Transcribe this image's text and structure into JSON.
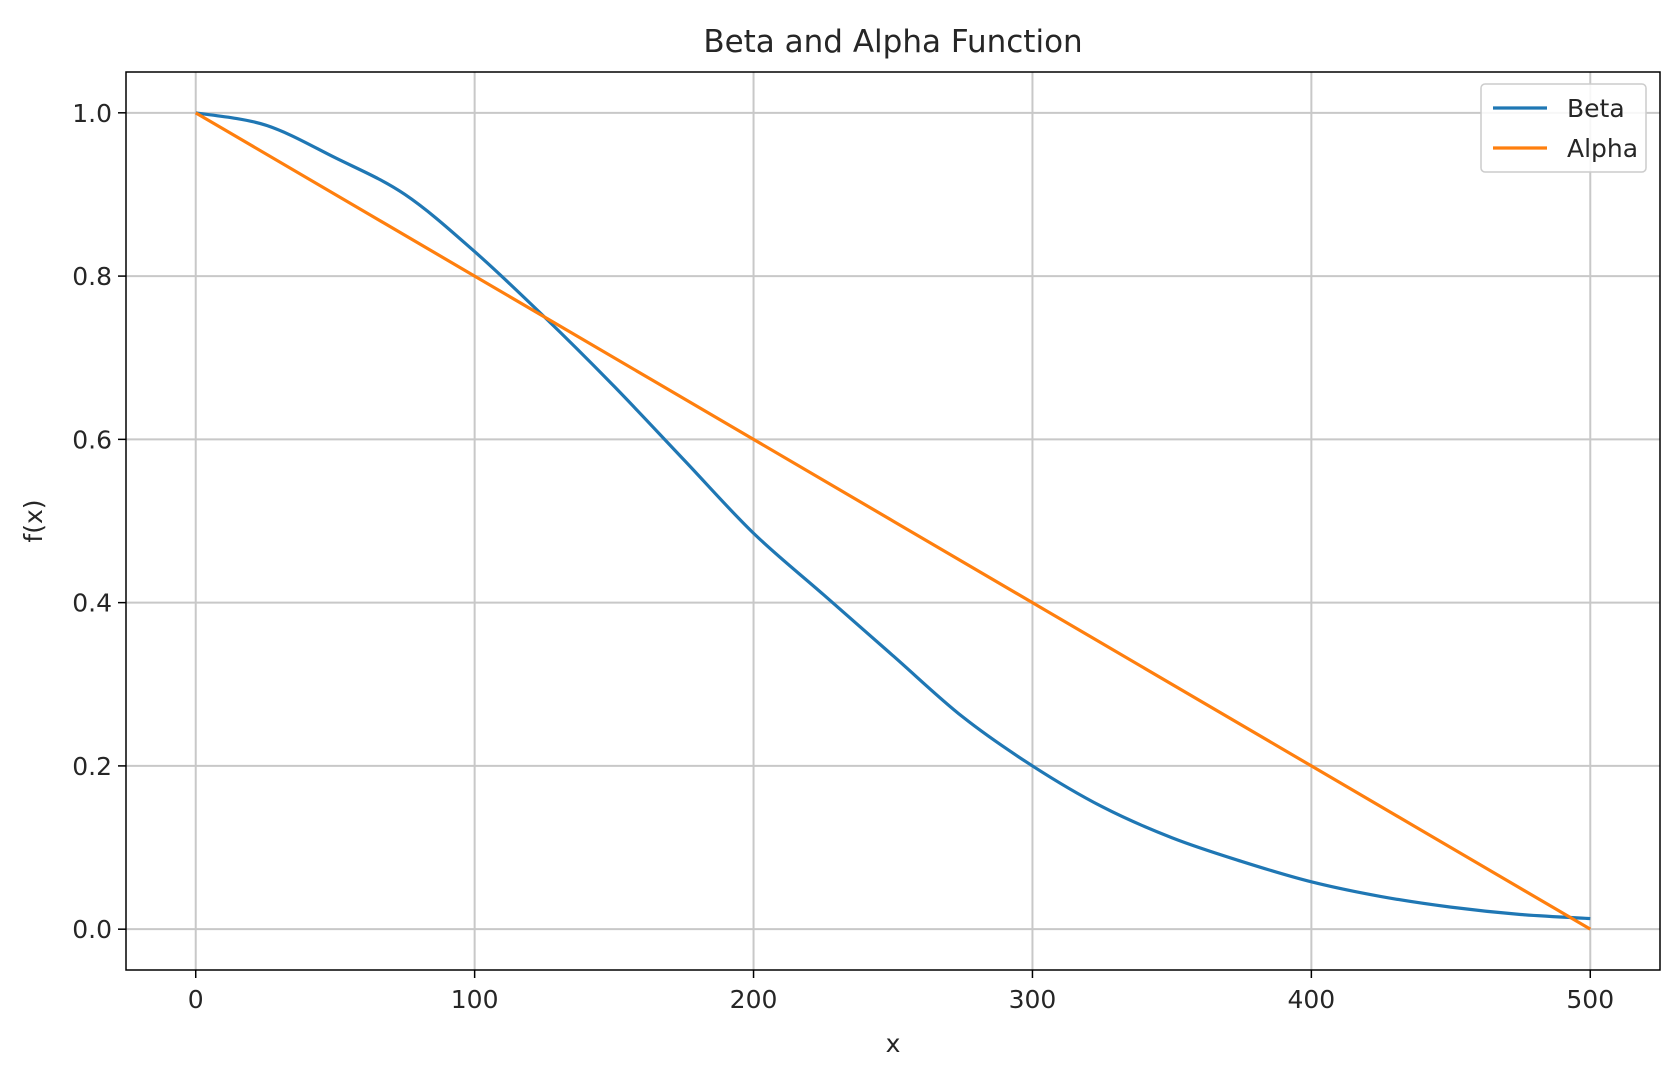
{
  "chart_data": {
    "type": "line",
    "title": "Beta and Alpha Function",
    "xlabel": "x",
    "ylabel": "f(x)",
    "xlim": [
      -25,
      525
    ],
    "ylim": [
      -0.05,
      1.05
    ],
    "x_ticks": [
      0,
      100,
      200,
      300,
      400,
      500
    ],
    "x_tick_labels": [
      "0",
      "100",
      "200",
      "300",
      "400",
      "500"
    ],
    "y_ticks": [
      0.0,
      0.2,
      0.4,
      0.6,
      0.8,
      1.0
    ],
    "y_tick_labels": [
      "0.0",
      "0.2",
      "0.4",
      "0.6",
      "0.8",
      "1.0"
    ],
    "grid": true,
    "legend_position": "top-right",
    "series": [
      {
        "name": "Beta",
        "color": "#1f77b4",
        "x": [
          0,
          25,
          50,
          75,
          100,
          125,
          150,
          175,
          200,
          225,
          250,
          275,
          300,
          325,
          350,
          375,
          400,
          425,
          450,
          475,
          500
        ],
        "y": [
          1.0,
          0.985,
          0.945,
          0.9,
          0.83,
          0.75,
          0.665,
          0.575,
          0.485,
          0.41,
          0.335,
          0.26,
          0.2,
          0.15,
          0.112,
          0.083,
          0.058,
          0.04,
          0.027,
          0.018,
          0.013
        ]
      },
      {
        "name": "Alpha",
        "color": "#ff7f0e",
        "x": [
          0,
          100,
          200,
          300,
          400,
          500
        ],
        "y": [
          1.0,
          0.8,
          0.6,
          0.4,
          0.2,
          0.0
        ]
      }
    ]
  }
}
